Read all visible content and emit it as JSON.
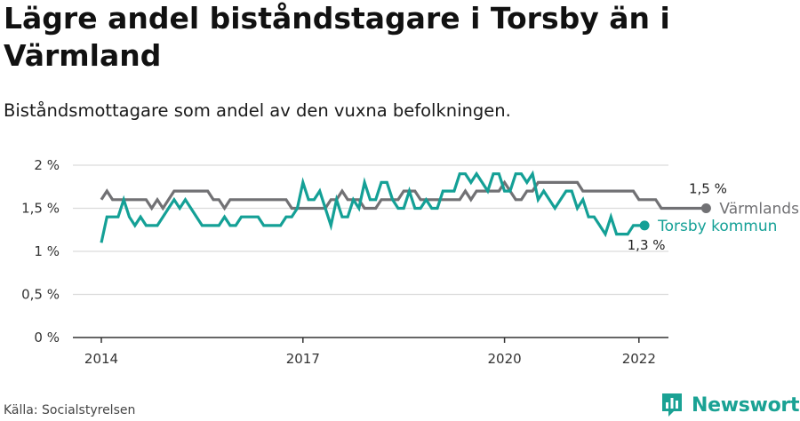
{
  "header": {
    "title": "Lägre andel biståndstagare i Torsby än i Värmland",
    "subtitle": "Biståndsmottagare som andel av den vuxna befolkningen."
  },
  "footer": {
    "source": "Källa: Socialstyrelsen",
    "brand": "Newsworthy",
    "brand_icon": "bar-chart-logo-icon"
  },
  "colors": {
    "varmland": "#717174",
    "torsby": "#14a096",
    "grid": "#dcdcdc",
    "axis": "#333333"
  },
  "chart_data": {
    "type": "line",
    "x_unit": "month",
    "x_start": "2014-01",
    "x_ticks": [
      "2014",
      "2017",
      "2020",
      "2022"
    ],
    "y_ticks": [
      "0 %",
      "0,5 %",
      "1 %",
      "1,5 %",
      "2 %"
    ],
    "ylim": [
      0,
      2
    ],
    "grid": true,
    "legend_placement": "right, at line ends",
    "series": [
      {
        "name": "Värmlands län",
        "color": "#717174",
        "end_label": "1,5 %",
        "values": [
          1.6,
          1.7,
          1.6,
          1.6,
          1.6,
          1.6,
          1.6,
          1.6,
          1.6,
          1.5,
          1.6,
          1.5,
          1.6,
          1.7,
          1.7,
          1.7,
          1.7,
          1.7,
          1.7,
          1.7,
          1.6,
          1.6,
          1.5,
          1.6,
          1.6,
          1.6,
          1.6,
          1.6,
          1.6,
          1.6,
          1.6,
          1.6,
          1.6,
          1.6,
          1.5,
          1.5,
          1.5,
          1.5,
          1.5,
          1.5,
          1.5,
          1.6,
          1.6,
          1.7,
          1.6,
          1.6,
          1.6,
          1.5,
          1.5,
          1.5,
          1.6,
          1.6,
          1.6,
          1.6,
          1.7,
          1.7,
          1.7,
          1.6,
          1.6,
          1.6,
          1.6,
          1.6,
          1.6,
          1.6,
          1.6,
          1.7,
          1.6,
          1.7,
          1.7,
          1.7,
          1.7,
          1.7,
          1.8,
          1.7,
          1.6,
          1.6,
          1.7,
          1.7,
          1.8,
          1.8,
          1.8,
          1.8,
          1.8,
          1.8,
          1.8,
          1.8,
          1.7,
          1.7,
          1.7,
          1.7,
          1.7,
          1.7,
          1.7,
          1.7,
          1.7,
          1.7,
          1.6,
          1.6,
          1.6,
          1.6,
          1.5,
          1.5,
          1.5,
          1.5,
          1.5,
          1.5,
          1.5,
          1.5,
          1.5
        ]
      },
      {
        "name": "Torsby kommun",
        "color": "#14a096",
        "end_label": "1,3 %",
        "values": [
          1.1,
          1.4,
          1.4,
          1.4,
          1.6,
          1.4,
          1.3,
          1.4,
          1.3,
          1.3,
          1.3,
          1.4,
          1.5,
          1.6,
          1.5,
          1.6,
          1.5,
          1.4,
          1.3,
          1.3,
          1.3,
          1.3,
          1.4,
          1.3,
          1.3,
          1.4,
          1.4,
          1.4,
          1.4,
          1.3,
          1.3,
          1.3,
          1.3,
          1.4,
          1.4,
          1.5,
          1.8,
          1.6,
          1.6,
          1.7,
          1.5,
          1.3,
          1.6,
          1.4,
          1.4,
          1.6,
          1.5,
          1.8,
          1.6,
          1.6,
          1.8,
          1.8,
          1.6,
          1.5,
          1.5,
          1.7,
          1.5,
          1.5,
          1.6,
          1.5,
          1.5,
          1.7,
          1.7,
          1.7,
          1.9,
          1.9,
          1.8,
          1.9,
          1.8,
          1.7,
          1.9,
          1.9,
          1.7,
          1.7,
          1.9,
          1.9,
          1.8,
          1.9,
          1.6,
          1.7,
          1.6,
          1.5,
          1.6,
          1.7,
          1.7,
          1.5,
          1.6,
          1.4,
          1.4,
          1.3,
          1.2,
          1.4,
          1.2,
          1.2,
          1.2,
          1.3,
          1.3,
          1.3
        ]
      }
    ]
  }
}
